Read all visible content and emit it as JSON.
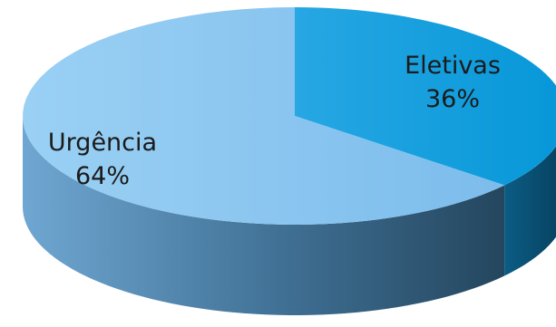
{
  "chart_data": {
    "type": "pie",
    "title": "",
    "slices": [
      {
        "name": "Eletivas",
        "value": 36,
        "label": "36%",
        "color": "#0ea0dd"
      },
      {
        "name": "Urgência",
        "value": 64,
        "label": "64%",
        "color": "#8ec9f1"
      }
    ],
    "style": "3d"
  }
}
